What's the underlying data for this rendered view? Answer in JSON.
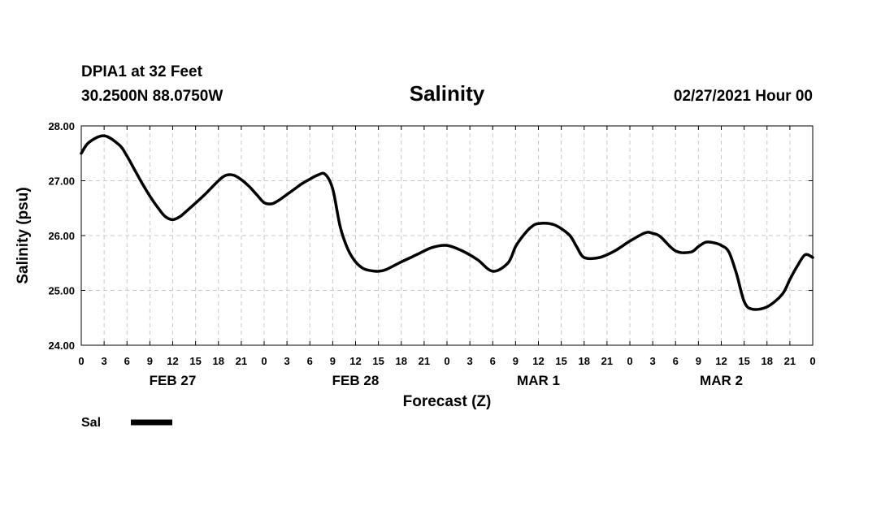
{
  "header": {
    "station": "DPIA1 at 32 Feet",
    "coords": "30.2500N 88.0750W",
    "issued": "02/27/2021 Hour 00"
  },
  "chart_data": {
    "type": "line",
    "title": "Salinity",
    "xlabel": "Forecast (Z)",
    "ylabel": "Salinity (psu)",
    "ylim": [
      24,
      28
    ],
    "xlim_hours": [
      0,
      96
    ],
    "y_ticks": [
      "24.00",
      "25.00",
      "26.00",
      "27.00",
      "28.00"
    ],
    "x_tick_labels": [
      "0",
      "3",
      "6",
      "9",
      "12",
      "15",
      "18",
      "21",
      "0",
      "3",
      "6",
      "9",
      "12",
      "15",
      "18",
      "21",
      "0",
      "3",
      "6",
      "9",
      "12",
      "15",
      "18",
      "21",
      "0",
      "3",
      "6",
      "9",
      "12",
      "15",
      "18",
      "21",
      "0"
    ],
    "days": [
      "FEB 27",
      "FEB 28",
      "MAR 1",
      "MAR 2"
    ],
    "grid": true,
    "legend": {
      "position": "bottom-left",
      "entries": [
        {
          "label": "Sal",
          "color": "#000000"
        }
      ]
    },
    "series": [
      {
        "name": "Sal",
        "color": "#000000",
        "x": [
          0,
          1,
          3,
          5,
          6,
          7,
          8,
          9,
          10,
          11,
          12,
          13,
          14,
          16,
          18,
          19,
          20,
          21,
          22,
          23,
          24,
          25,
          26,
          27,
          28,
          29,
          30,
          31,
          32,
          33,
          34,
          35,
          36,
          37,
          38,
          39,
          40,
          42,
          44,
          46,
          48,
          50,
          52,
          54,
          56,
          57,
          58,
          59,
          60,
          62,
          64,
          65,
          66,
          68,
          70,
          72,
          74,
          75,
          76,
          78,
          80,
          81,
          82,
          83,
          84,
          85,
          86,
          87,
          88,
          90,
          92,
          93,
          94,
          95,
          96
        ],
        "values": [
          27.5,
          27.7,
          27.82,
          27.65,
          27.45,
          27.2,
          26.95,
          26.72,
          26.52,
          26.35,
          26.29,
          26.35,
          26.47,
          26.72,
          27.0,
          27.1,
          27.1,
          27.02,
          26.9,
          26.75,
          26.6,
          26.58,
          26.65,
          26.75,
          26.85,
          26.95,
          27.03,
          27.1,
          27.12,
          26.85,
          26.15,
          25.75,
          25.52,
          25.4,
          25.36,
          25.35,
          25.38,
          25.52,
          25.65,
          25.78,
          25.82,
          25.72,
          25.56,
          25.35,
          25.5,
          25.8,
          26.0,
          26.15,
          26.22,
          26.2,
          26.02,
          25.8,
          25.6,
          25.6,
          25.72,
          25.9,
          26.05,
          26.04,
          25.98,
          25.72,
          25.7,
          25.8,
          25.88,
          25.87,
          25.82,
          25.7,
          25.3,
          24.8,
          24.66,
          24.7,
          24.93,
          25.2,
          25.45,
          25.65,
          25.6
        ]
      }
    ]
  }
}
